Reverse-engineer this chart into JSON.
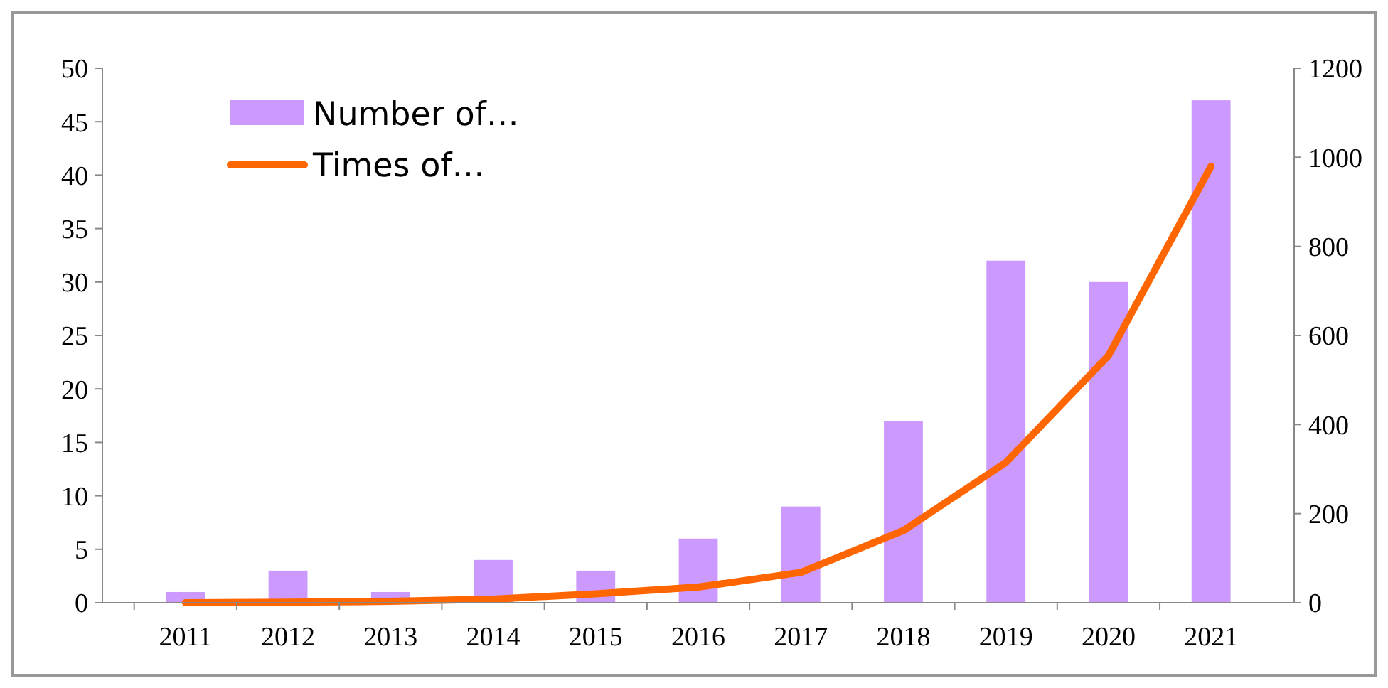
{
  "chart_data": {
    "type": "bar",
    "categories": [
      "2011",
      "2012",
      "2013",
      "2014",
      "2015",
      "2016",
      "2017",
      "2018",
      "2019",
      "2020",
      "2021"
    ],
    "series": [
      {
        "name": "Number of…",
        "color": "#cc99ff",
        "values": [
          1,
          3,
          1,
          4,
          3,
          6,
          9,
          17,
          32,
          30,
          47
        ]
      },
      {
        "name": "Times of…",
        "type": "line",
        "axis": "y2",
        "color": "#ff6600",
        "values": [
          0,
          1,
          3,
          8,
          20,
          35,
          68,
          162,
          315,
          555,
          980
        ]
      }
    ],
    "ylim": [
      0,
      50
    ],
    "yticks": [
      0,
      5,
      10,
      15,
      20,
      25,
      30,
      35,
      40,
      45,
      50
    ],
    "y2lim": [
      0,
      1200
    ],
    "y2ticks": [
      0,
      200,
      400,
      600,
      800,
      1000,
      1200
    ],
    "legend": "top left",
    "grid": false,
    "marker": "none",
    "line_style": "solid"
  }
}
